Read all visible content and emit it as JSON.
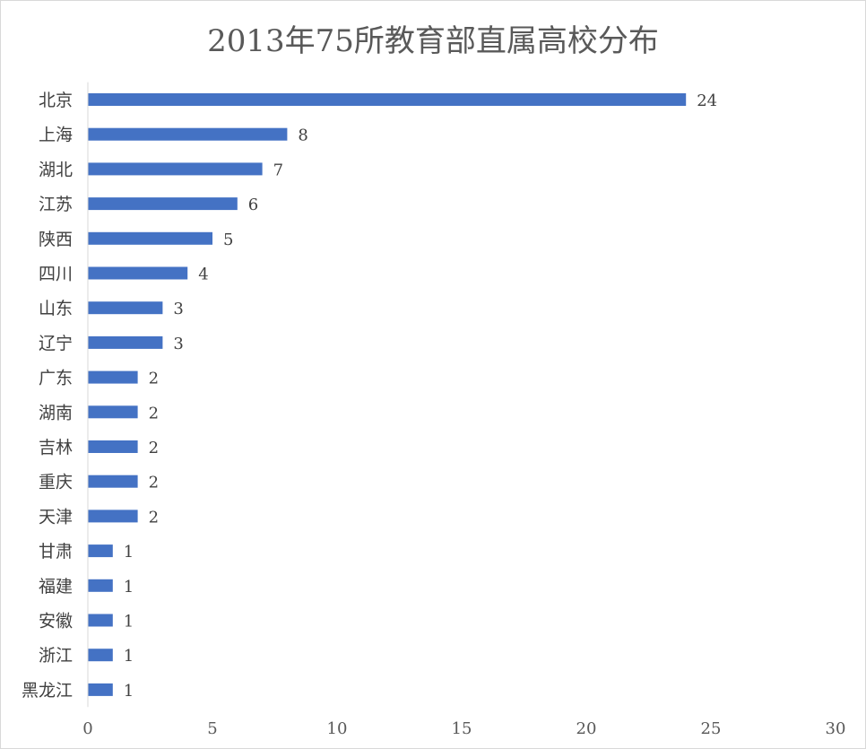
{
  "chart_data": {
    "type": "bar",
    "orientation": "horizontal",
    "title": "2013年75所教育部直属高校分布",
    "categories": [
      "北京",
      "上海",
      "湖北",
      "江苏",
      "陕西",
      "四川",
      "山东",
      "辽宁",
      "广东",
      "湖南",
      "吉林",
      "重庆",
      "天津",
      "甘肃",
      "福建",
      "安徽",
      "浙江",
      "黑龙江"
    ],
    "values": [
      24,
      8,
      7,
      6,
      5,
      4,
      3,
      3,
      2,
      2,
      2,
      2,
      2,
      1,
      1,
      1,
      1,
      1
    ],
    "xlim": [
      0,
      30
    ],
    "xticks": [
      0,
      5,
      10,
      15,
      20,
      25,
      30
    ],
    "xlabel": "",
    "ylabel": "",
    "grid": false,
    "legend": "none",
    "data_labels": true,
    "bar_color": "#4472c4"
  }
}
